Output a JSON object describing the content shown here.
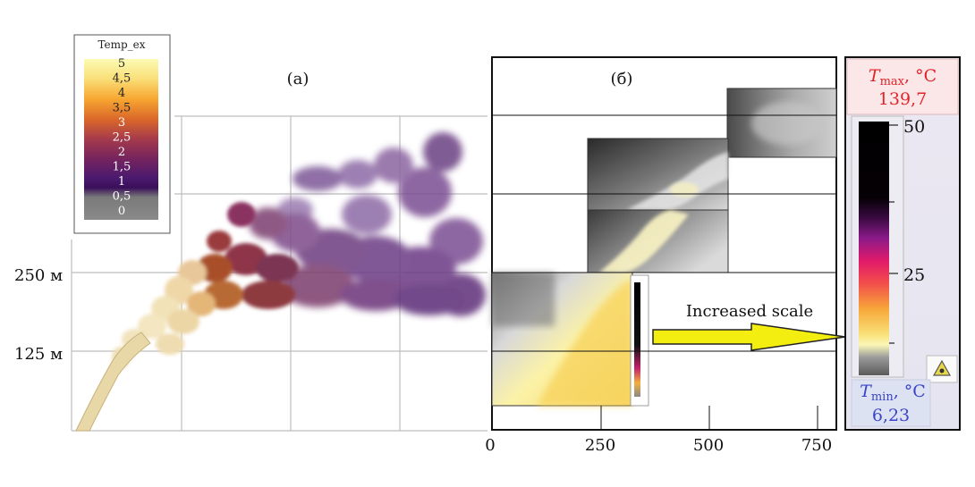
{
  "panel_a": {
    "label": "(a)",
    "legend": {
      "title": "Temp_ex",
      "ticks": [
        "5",
        "4,5",
        "4",
        "3,5",
        "3",
        "2,5",
        "2",
        "1,5",
        "1",
        "0,5",
        "0"
      ]
    },
    "y_labels": [
      "250 м",
      "125 м"
    ]
  },
  "panel_b": {
    "label": "(б)",
    "x_ticks": [
      "0",
      "250",
      "500",
      "750"
    ]
  },
  "arrow": {
    "label": "Increased scale",
    "color": "#f4ee10"
  },
  "scale_bar": {
    "tmax_symbol": "T",
    "tmax_sub": "max",
    "tmax_unit": ", °C",
    "tmax_value": "139,7",
    "ticks": [
      "50",
      "25"
    ],
    "tmin_symbol": "T",
    "tmin_sub": "min",
    "tmin_unit": ", °C",
    "tmin_value": "6,23",
    "tmax_color": "#e3232a",
    "tmin_color": "#3a44c8"
  }
}
